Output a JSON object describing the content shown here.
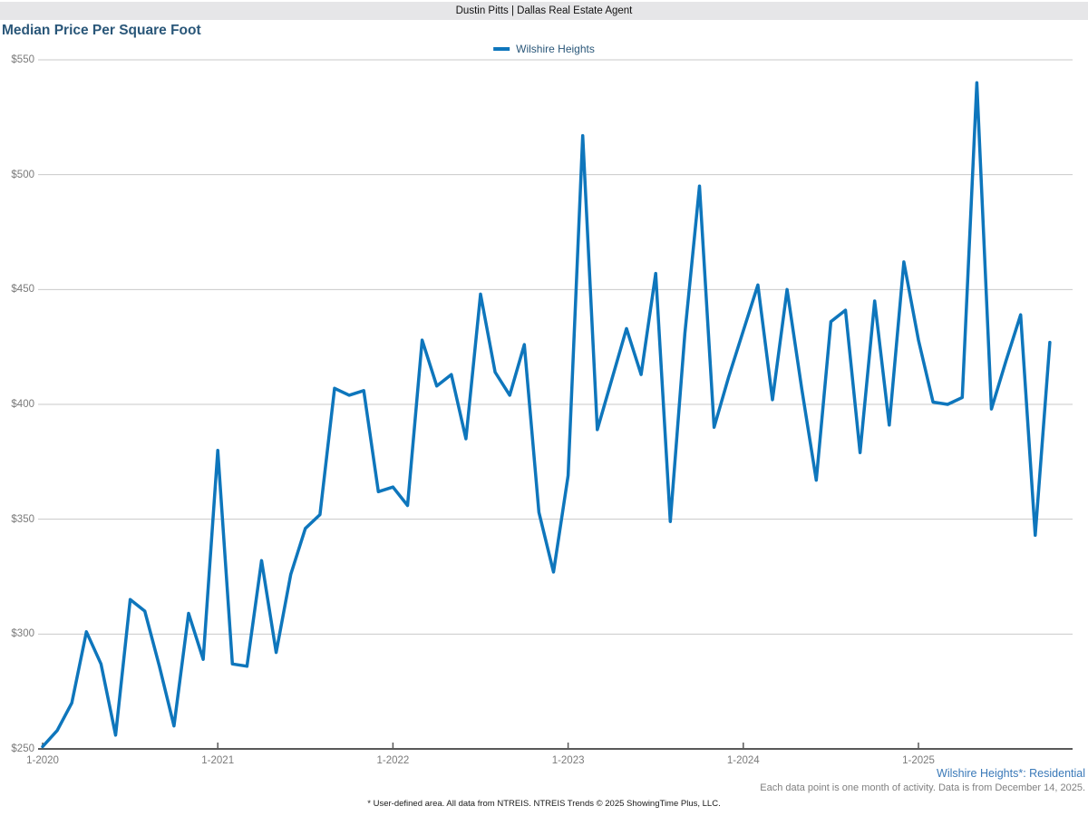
{
  "header": {
    "title": "Dustin Pitts | Dallas Real Estate Agent"
  },
  "chart": {
    "title": "Median Price Per Square Foot",
    "legend_label": "Wilshire Heights"
  },
  "chart_data": {
    "type": "line",
    "title": "Median Price Per Square Foot",
    "legend_position": "top-center",
    "grid": "horizontal",
    "ylim": [
      250,
      550
    ],
    "y_tick_labels": [
      "$250",
      "$300",
      "$350",
      "$400",
      "$450",
      "$500",
      "$550"
    ],
    "x_tick_labels": [
      "1-2020",
      "1-2021",
      "1-2022",
      "1-2023",
      "1-2024",
      "1-2025"
    ],
    "series": [
      {
        "name": "Wilshire Heights",
        "color": "#0e76bc",
        "months": [
          "2020-01",
          "2020-02",
          "2020-03",
          "2020-04",
          "2020-05",
          "2020-06",
          "2020-07",
          "2020-08",
          "2020-09",
          "2020-10",
          "2020-11",
          "2020-12",
          "2021-01",
          "2021-02",
          "2021-03",
          "2021-04",
          "2021-05",
          "2021-06",
          "2021-07",
          "2021-08",
          "2021-09",
          "2021-10",
          "2021-11",
          "2021-12",
          "2022-01",
          "2022-02",
          "2022-03",
          "2022-04",
          "2022-05",
          "2022-06",
          "2022-07",
          "2022-08",
          "2022-09",
          "2022-10",
          "2022-11",
          "2022-12",
          "2023-01",
          "2023-02",
          "2023-03",
          "2023-04",
          "2023-05",
          "2023-06",
          "2023-07",
          "2023-08",
          "2023-09",
          "2023-10",
          "2023-11",
          "2023-12",
          "2024-01",
          "2024-02",
          "2024-03",
          "2024-04",
          "2024-05",
          "2024-06",
          "2024-07",
          "2024-08",
          "2024-09",
          "2024-10",
          "2024-11",
          "2024-12",
          "2025-01",
          "2025-02",
          "2025-03",
          "2025-04",
          "2025-05",
          "2025-06",
          "2025-07",
          "2025-08",
          "2025-09",
          "2025-10"
        ],
        "values": [
          251,
          258,
          270,
          301,
          287,
          256,
          315,
          310,
          286,
          260,
          309,
          289,
          380,
          287,
          286,
          332,
          292,
          326,
          346,
          352,
          407,
          404,
          406,
          362,
          364,
          356,
          428,
          408,
          413,
          385,
          448,
          414,
          404,
          426,
          353,
          327,
          369,
          517,
          389,
          411,
          433,
          413,
          457,
          349,
          431,
          495,
          390,
          412,
          432,
          452,
          402,
          450,
          407,
          367,
          436,
          441,
          379,
          445,
          391,
          462,
          428,
          401,
          400,
          403,
          540,
          398,
          419,
          439,
          343,
          427
        ]
      }
    ]
  },
  "footer": {
    "series_note": "Wilshire Heights*: Residential",
    "data_note": "Each data point is one month of activity. Data is from December 14, 2025.",
    "disclaimer": "* User-defined area. All data from NTREIS. NTREIS Trends © 2025 ShowingTime Plus, LLC."
  },
  "colors": {
    "line": "#0e76bc",
    "title": "#2a5779",
    "header_bg": "#e6e6e8",
    "gridline": "#c9c9c9",
    "axis": "#595959",
    "tick_label": "#7a7a7a",
    "series_note": "#3a79b8",
    "data_note": "#808080"
  }
}
